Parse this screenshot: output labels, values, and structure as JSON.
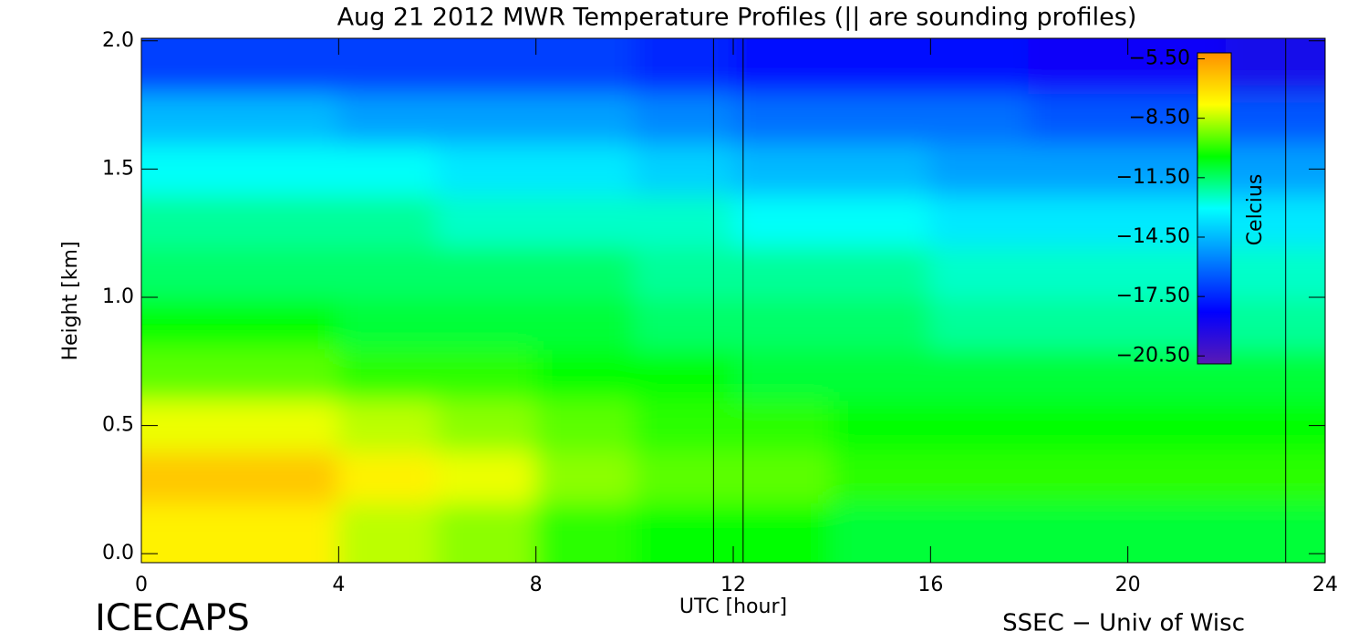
{
  "chart_data": {
    "type": "contour",
    "title": "Aug 21 2012 MWR Temperature Profiles (|| are sounding profiles)",
    "xlabel": "UTC [hour]",
    "ylabel": "Height [km]",
    "footer_left": "ICECAPS",
    "footer_right": "SSEC − Univ of Wisc",
    "colorbar_label": "Celcius",
    "xlim": [
      0,
      24
    ],
    "xticks": [
      0,
      4,
      8,
      12,
      16,
      20,
      24
    ],
    "ylim": [
      -0.035,
      2.01
    ],
    "yticks": [
      {
        "value": 0,
        "label": "0.0"
      },
      0.5,
      {
        "value": 1,
        "label": "1.0"
      },
      1.5,
      {
        "value": 2,
        "label": "2.0"
      }
    ],
    "zlim": [
      -20.9,
      -5.2
    ],
    "zticks": [
      {
        "value": -5.5,
        "label": "−5.50"
      },
      {
        "value": -8.5,
        "label": "−8.50"
      },
      {
        "value": -11.5,
        "label": "−11.50"
      },
      {
        "value": -14.5,
        "label": "−14.50"
      },
      {
        "value": -17.5,
        "label": "−17.50"
      },
      {
        "value": -20.5,
        "label": "−20.50"
      }
    ],
    "colors": [
      "#5a1ab4",
      "#0000ff",
      "#0080ff",
      "#00ffff",
      "#00ff00",
      "#ffff00",
      "#ff9000"
    ],
    "sounding_times": [
      11.6,
      12.2,
      23.2
    ],
    "x": [
      1,
      3,
      5,
      7,
      9,
      11,
      13,
      15,
      17,
      19,
      21,
      23
    ],
    "heights": [
      0.1,
      0.3,
      0.5,
      0.7,
      0.9,
      1.1,
      1.3,
      1.5,
      1.7,
      1.9
    ],
    "z": [
      [
        -7.5,
        -7.5,
        -8.5,
        -9,
        -10,
        -10.5,
        -10.5,
        -11,
        -11,
        -11,
        -11,
        -11
      ],
      [
        -6.5,
        -6.5,
        -7.5,
        -8,
        -9,
        -9.5,
        -9.5,
        -10,
        -10,
        -10,
        -10,
        -10
      ],
      [
        -8,
        -8,
        -8.5,
        -9,
        -9.5,
        -10,
        -10,
        -10.5,
        -10.5,
        -10.5,
        -10.5,
        -10.5
      ],
      [
        -9.5,
        -9.5,
        -10,
        -10,
        -10.5,
        -10.5,
        -11,
        -11,
        -11,
        -11,
        -11,
        -11
      ],
      [
        -10.5,
        -10.5,
        -11,
        -11,
        -11,
        -11.5,
        -11.5,
        -11.5,
        -12,
        -12,
        -12,
        -12
      ],
      [
        -11.5,
        -11.5,
        -11.5,
        -11.5,
        -11.5,
        -12,
        -12,
        -12,
        -12.5,
        -12.5,
        -12.5,
        -12.5
      ],
      [
        -12,
        -12,
        -12,
        -12.5,
        -12.5,
        -12.5,
        -13,
        -13,
        -13.5,
        -13.5,
        -13.5,
        -13.5
      ],
      [
        -13,
        -13,
        -13,
        -13.5,
        -13.5,
        -14,
        -14.5,
        -14.5,
        -15,
        -15,
        -15,
        -15
      ],
      [
        -14.5,
        -14.5,
        -15,
        -15,
        -15,
        -15.5,
        -16,
        -16,
        -16,
        -16.5,
        -16.5,
        -16.5
      ],
      [
        -17,
        -17,
        -17,
        -17,
        -17,
        -17.5,
        -18,
        -18,
        -18,
        -18.5,
        -18.5,
        -19
      ]
    ]
  }
}
